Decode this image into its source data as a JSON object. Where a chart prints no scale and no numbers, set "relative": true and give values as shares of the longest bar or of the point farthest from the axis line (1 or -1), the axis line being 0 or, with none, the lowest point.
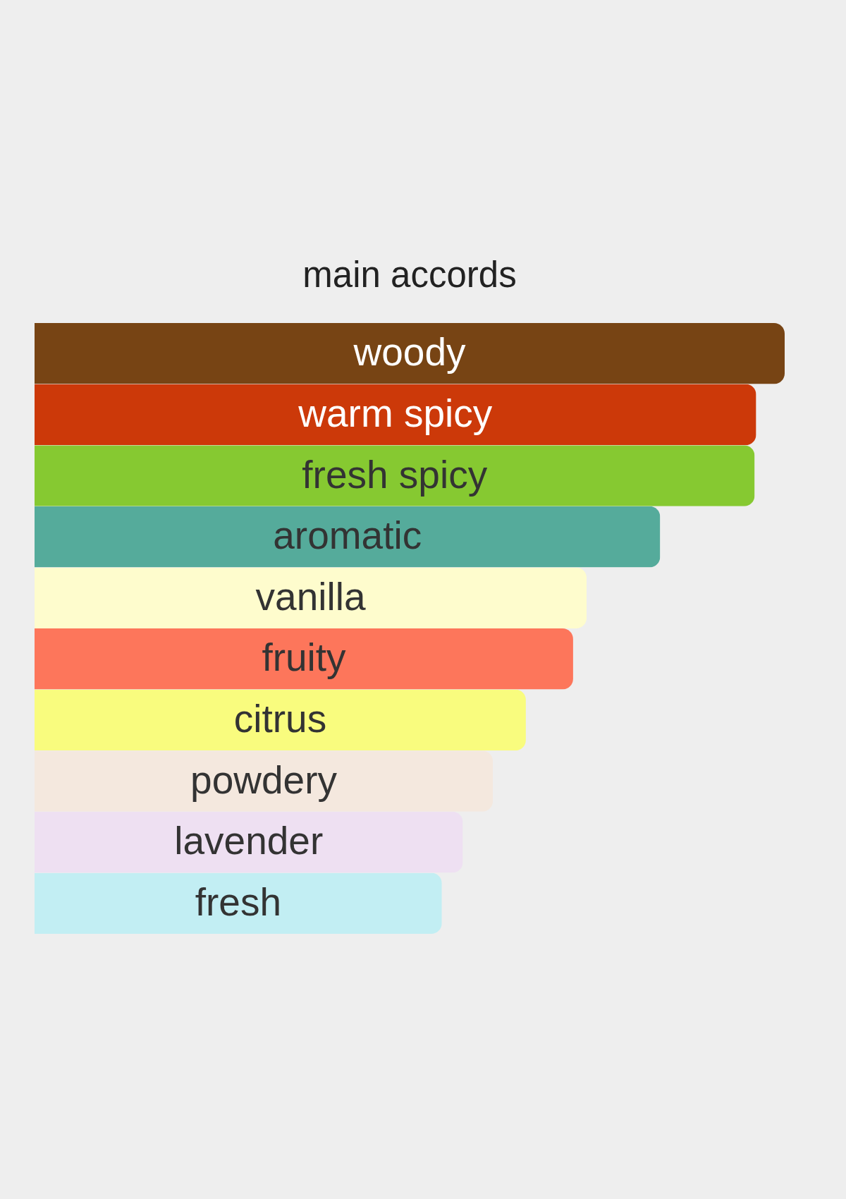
{
  "chart_data": {
    "type": "bar",
    "orientation": "horizontal",
    "relative": true,
    "tick_labels": false,
    "title": "main accords",
    "categories": [
      "woody",
      "warm spicy",
      "fresh spicy",
      "aromatic",
      "vanilla",
      "fruity",
      "citrus",
      "powdery",
      "lavender",
      "fresh"
    ],
    "values": [
      1,
      0.962,
      0.96,
      0.834,
      0.736,
      0.718,
      0.655,
      0.611,
      0.571,
      0.543
    ],
    "colors": [
      "#774414",
      "#cc3909",
      "#86c931",
      "#55ab9b",
      "#fefccd",
      "#fd765b",
      "#f9fc7e",
      "#f4e8de",
      "#eee0f2",
      "#c2eef3"
    ]
  }
}
